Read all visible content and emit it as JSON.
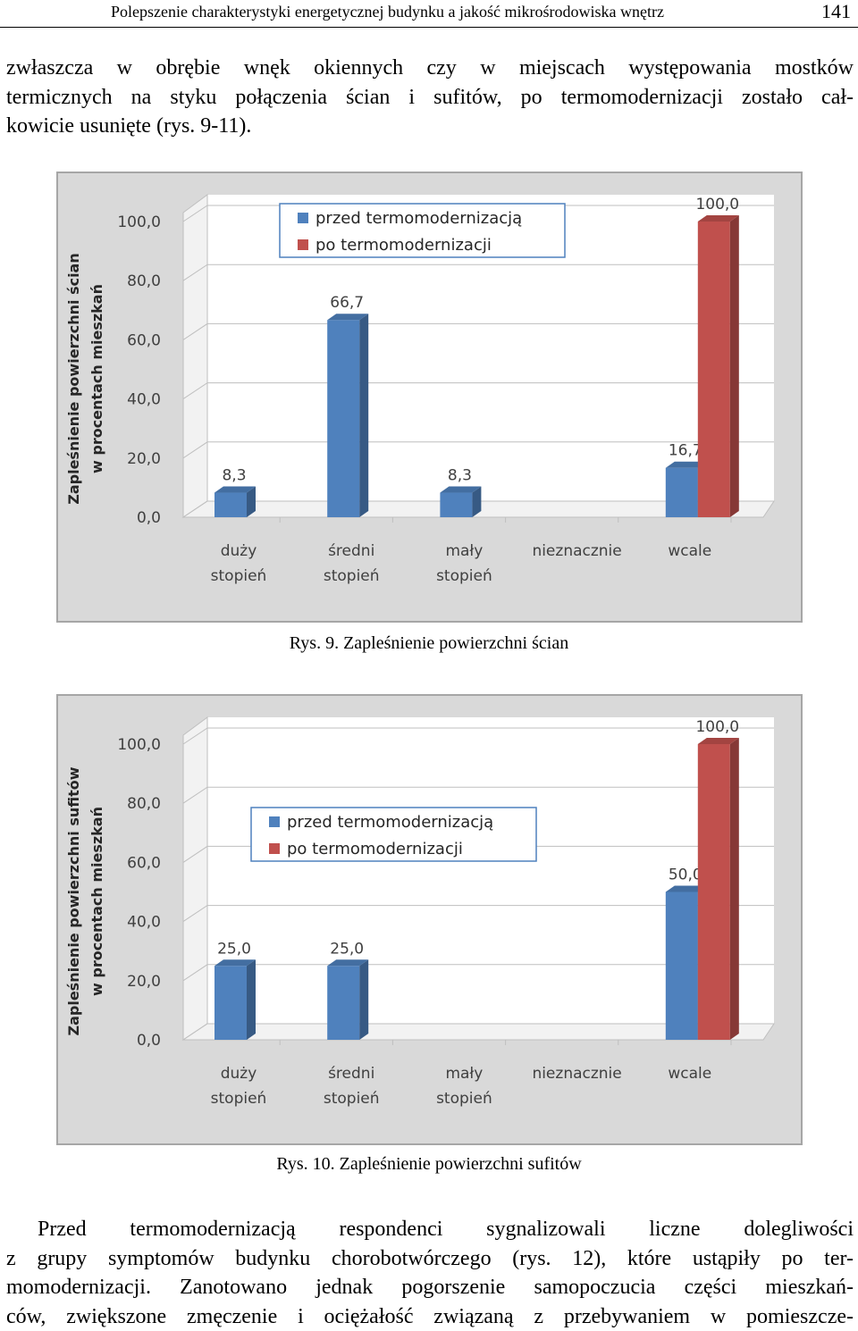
{
  "header": {
    "title": "Polepszenie charakterystyki energetycznej budynku a jakość mikrośrodowiska wnętrz",
    "page": "141"
  },
  "paragraphs": [
    [
      "zwłaszcza w obrębie wnęk okiennych czy w miejscach występowania mostków",
      "termicznych na styku połączenia ścian i sufitów, po termomodernizacji zostało cał-",
      "kowicie usunięte (rys. 9-11)."
    ],
    [
      "Przed termomodernizacją respondenci sygnalizowali liczne dolegliwości",
      "z grupy symptomów budynku chorobotwórczego (rys. 12), które ustąpiły po ter-",
      "momodernizacji. Zanotowano jednak pogorszenie samopoczucia części mieszkań-",
      "ców, zwiększone zmęczenie i ociężałość związaną z przebywaniem w pomieszcze-"
    ]
  ],
  "chart_data": [
    {
      "type": "bar3d",
      "caption": "Rys. 9. Zapleśnienie powierzchni ścian",
      "ylabel": [
        "Zapleśnienie powierzchni ścian",
        "w procentach mieszkań"
      ],
      "categories": [
        [
          "duży",
          "stopień"
        ],
        [
          "średni",
          "stopień"
        ],
        [
          "mały",
          "stopień"
        ],
        [
          "nieznacznie"
        ],
        [
          "wcale"
        ]
      ],
      "series": [
        {
          "name": "przed termomodernizacją",
          "color": "#4f81bd",
          "values": [
            8.3,
            66.7,
            8.3,
            null,
            16.7
          ],
          "value_labels": [
            "8,3",
            "66,7",
            "8,3",
            null,
            "16,7"
          ]
        },
        {
          "name": "po termomodernizacji",
          "color": "#c0504d",
          "values": [
            null,
            null,
            null,
            null,
            100.0
          ],
          "value_labels": [
            null,
            null,
            null,
            null,
            "100,0"
          ]
        }
      ],
      "ylim": [
        0,
        100
      ],
      "yticks": [
        {
          "value": 0,
          "label": "0,0"
        },
        {
          "value": 20,
          "label": "20,0"
        },
        {
          "value": 40,
          "label": "40,0"
        },
        {
          "value": 60,
          "label": "60,0"
        },
        {
          "value": 80,
          "label": "80,0"
        },
        {
          "value": 100,
          "label": "100,0"
        }
      ],
      "grid": true,
      "legend": "top"
    },
    {
      "type": "bar3d",
      "caption": "Rys. 10. Zapleśnienie powierzchni sufitów",
      "ylabel": [
        "Zapleśnienie powierzchni sufitów",
        "w procentach mieszkań"
      ],
      "categories": [
        [
          "duży",
          "stopień"
        ],
        [
          "średni",
          "stopień"
        ],
        [
          "mały",
          "stopień"
        ],
        [
          "nieznacznie"
        ],
        [
          "wcale"
        ]
      ],
      "series": [
        {
          "name": "przed termomodernizacją",
          "color": "#4f81bd",
          "values": [
            25.0,
            25.0,
            null,
            null,
            50.0
          ],
          "value_labels": [
            "25,0",
            "25,0",
            null,
            null,
            "50,0"
          ]
        },
        {
          "name": "po termomodernizacji",
          "color": "#c0504d",
          "values": [
            null,
            null,
            null,
            null,
            100.0
          ],
          "value_labels": [
            null,
            null,
            null,
            null,
            "100,0"
          ]
        }
      ],
      "ylim": [
        0,
        100
      ],
      "yticks": [
        {
          "value": 0,
          "label": "0,0"
        },
        {
          "value": 20,
          "label": "20,0"
        },
        {
          "value": 40,
          "label": "40,0"
        },
        {
          "value": 60,
          "label": "60,0"
        },
        {
          "value": 80,
          "label": "80,0"
        },
        {
          "value": 100,
          "label": "100,0"
        }
      ],
      "grid": true,
      "legend": "top"
    }
  ]
}
